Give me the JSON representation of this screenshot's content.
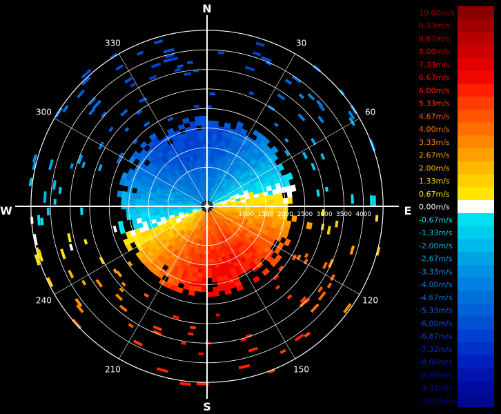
{
  "chart_data": {
    "type": "heatmap",
    "subtype": "polar-ppi-radial-velocity",
    "title": "",
    "compass_labels": [
      "N",
      "E",
      "S",
      "W"
    ],
    "angle_labels": [
      "30",
      "60",
      "120",
      "150",
      "210",
      "240",
      "300",
      "330"
    ],
    "angle_values_deg": [
      30,
      60,
      120,
      150,
      210,
      240,
      300,
      330
    ],
    "range_labels": [
      "1000",
      "1500",
      "2000",
      "2500",
      "3000",
      "3500",
      "4000"
    ],
    "range_values": [
      1000,
      1500,
      2000,
      2500,
      3000,
      3500,
      4000
    ],
    "range_max": 4000,
    "rings": [
      1000,
      1500,
      2000,
      2500,
      3000,
      3500,
      4000,
      4500
    ],
    "color_scale": {
      "unit": "m/s",
      "min": -10,
      "max": 10,
      "labels": [
        "10.00m/s",
        "9.33m/s",
        "8.67m/s",
        "8.00m/s",
        "7.33m/s",
        "6.67m/s",
        "6.00m/s",
        "5.33m/s",
        "4.67m/s",
        "4.00m/s",
        "3.33m/s",
        "2.67m/s",
        "2.00m/s",
        "1.33m/s",
        "0.67m/s",
        "0.00m/s",
        "-0.67m/s",
        "-1.33m/s",
        "-2.00m/s",
        "-2.67m/s",
        "-3.33m/s",
        "-4.00m/s",
        "-4.67m/s",
        "-5.33m/s",
        "-6.00m/s",
        "-6.67m/s",
        "-7.33m/s",
        "-8.00m/s",
        "-8.67m/s",
        "-9.33m/s",
        "-10.00m/s"
      ],
      "colors": [
        "#8a0000",
        "#a00000",
        "#b80000",
        "#cc0000",
        "#e00000",
        "#f00800",
        "#ff2000",
        "#ff3c00",
        "#ff5500",
        "#ff6e00",
        "#ff8800",
        "#ffa000",
        "#ffb800",
        "#ffd000",
        "#ffe600",
        "#ffffff",
        "#00e0f0",
        "#00ccee",
        "#00b8ea",
        "#00a4e6",
        "#0090e2",
        "#0080e0",
        "#0070dc",
        "#0060d8",
        "#0050d4",
        "#0040d0",
        "#0030c8",
        "#0020c0",
        "#0014b0",
        "#000ca0",
        "#000890"
      ]
    },
    "wind_field": {
      "zero_line_north_deg": 72,
      "zero_line_south_deg": 248,
      "peak_positive_deg": 160,
      "peak_negative_deg": 340,
      "peak_speed": 6.5,
      "dense_range": 2200,
      "sparse_range": 4500
    }
  }
}
